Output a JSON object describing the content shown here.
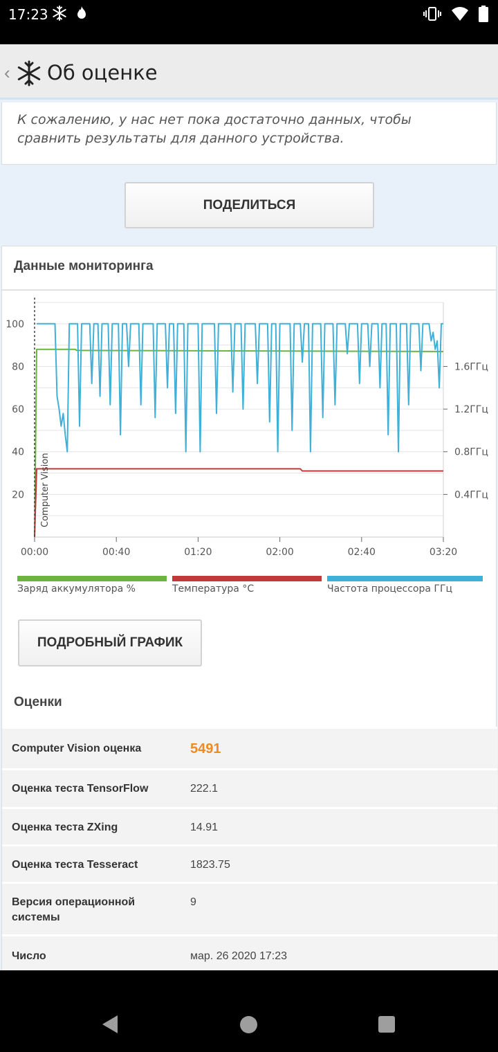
{
  "status_bar": {
    "time": "17:23",
    "left_icons": [
      "snowflake-icon",
      "flame-icon"
    ],
    "right_icons": [
      "vibrate-icon",
      "wifi-icon",
      "battery-icon"
    ]
  },
  "header": {
    "title": "Об оценке",
    "back_icon": "chevron-left-icon",
    "logo_icon": "snowflake-icon"
  },
  "notice": {
    "text": "К сожалению, у нас нет пока достаточно данных, чтобы сравнить результаты для данного устройства."
  },
  "share_button": {
    "label": "ПОДЕЛИТЬСЯ"
  },
  "monitoring": {
    "title": "Данные мониторинга",
    "legend": [
      {
        "label": "Заряд аккумулятора %",
        "color": "#6db33f"
      },
      {
        "label": "Температура °C",
        "color": "#c0393b"
      },
      {
        "label": "Частота процессора ГГц",
        "color": "#3fb0d8"
      }
    ],
    "detail_button": {
      "label": "ПОДРОБНЫЙ ГРАФИК"
    }
  },
  "chart_data": {
    "type": "line",
    "x_unit": "minutes",
    "x_ticks": [
      "00:00",
      "00:40",
      "01:20",
      "02:00",
      "02:40",
      "03:20"
    ],
    "xlim": [
      0,
      200
    ],
    "ylim": [
      0,
      110
    ],
    "y_ticks": [
      "20",
      "40",
      "60",
      "80",
      "100"
    ],
    "y2_ticks": [
      "0.4ГГц",
      "0.8ГГц",
      "1.2ГГц",
      "1.6ГГц"
    ],
    "grid": true,
    "annotation": "Computer Vision",
    "series": [
      {
        "name": "Заряд аккумулятора %",
        "color": "#6db33f",
        "points": [
          [
            0,
            0
          ],
          [
            1,
            88
          ],
          [
            20,
            88
          ],
          [
            20.5,
            87.5
          ],
          [
            200,
            87
          ]
        ]
      },
      {
        "name": "Температура °C",
        "color": "#c0393b",
        "points": [
          [
            0,
            0
          ],
          [
            1,
            32
          ],
          [
            130,
            32
          ],
          [
            131,
            31
          ],
          [
            200,
            31
          ]
        ]
      },
      {
        "name": "Частота процессора ГГц",
        "color": "#3fb0d8",
        "points": [
          [
            1,
            100
          ],
          [
            10,
            100
          ],
          [
            11,
            66
          ],
          [
            12,
            60
          ],
          [
            13,
            52
          ],
          [
            14,
            58
          ],
          [
            15,
            48
          ],
          [
            16,
            40
          ],
          [
            17,
            100
          ],
          [
            21,
            100
          ],
          [
            22,
            52
          ],
          [
            23,
            100
          ],
          [
            27,
            100
          ],
          [
            28,
            72
          ],
          [
            29,
            100
          ],
          [
            31,
            100
          ],
          [
            32,
            66
          ],
          [
            33,
            100
          ],
          [
            36,
            100
          ],
          [
            37,
            62
          ],
          [
            38,
            100
          ],
          [
            41,
            100
          ],
          [
            42,
            48
          ],
          [
            43,
            100
          ],
          [
            45,
            100
          ],
          [
            46,
            80
          ],
          [
            47,
            100
          ],
          [
            51,
            100
          ],
          [
            52,
            62
          ],
          [
            53,
            100
          ],
          [
            58,
            100
          ],
          [
            59,
            56
          ],
          [
            60,
            100
          ],
          [
            64,
            100
          ],
          [
            65,
            70
          ],
          [
            66,
            100
          ],
          [
            68,
            100
          ],
          [
            69,
            58
          ],
          [
            70,
            100
          ],
          [
            73,
            100
          ],
          [
            74,
            40
          ],
          [
            75,
            100
          ],
          [
            80,
            100
          ],
          [
            81,
            40
          ],
          [
            82,
            100
          ],
          [
            88,
            100
          ],
          [
            89,
            58
          ],
          [
            90,
            100
          ],
          [
            96,
            100
          ],
          [
            97,
            68
          ],
          [
            98,
            100
          ],
          [
            101,
            100
          ],
          [
            102,
            60
          ],
          [
            103,
            100
          ],
          [
            108,
            100
          ],
          [
            109,
            72
          ],
          [
            110,
            100
          ],
          [
            114,
            100
          ],
          [
            115,
            54
          ],
          [
            116,
            100
          ],
          [
            118,
            100
          ],
          [
            119,
            40
          ],
          [
            120,
            100
          ],
          [
            125,
            100
          ],
          [
            126,
            50
          ],
          [
            127,
            100
          ],
          [
            130,
            100
          ],
          [
            131,
            82
          ],
          [
            132,
            100
          ],
          [
            134,
            100
          ],
          [
            135,
            40
          ],
          [
            136,
            100
          ],
          [
            140,
            100
          ],
          [
            141,
            56
          ],
          [
            142,
            100
          ],
          [
            146,
            100
          ],
          [
            147,
            62
          ],
          [
            148,
            100
          ],
          [
            152,
            100
          ],
          [
            153,
            86
          ],
          [
            154,
            100
          ],
          [
            158,
            100
          ],
          [
            159,
            72
          ],
          [
            160,
            100
          ],
          [
            163,
            100
          ],
          [
            164,
            80
          ],
          [
            165,
            100
          ],
          [
            168,
            100
          ],
          [
            169,
            70
          ],
          [
            170,
            100
          ],
          [
            172,
            100
          ],
          [
            173,
            48
          ],
          [
            174,
            100
          ],
          [
            177,
            100
          ],
          [
            178,
            40
          ],
          [
            179,
            100
          ],
          [
            182,
            100
          ],
          [
            183,
            62
          ],
          [
            184,
            100
          ],
          [
            188,
            100
          ],
          [
            189,
            78
          ],
          [
            190,
            100
          ],
          [
            193,
            100
          ],
          [
            194,
            92
          ],
          [
            195,
            96
          ],
          [
            196,
            88
          ],
          [
            197,
            92
          ],
          [
            198,
            70
          ],
          [
            199,
            100
          ],
          [
            200,
            100
          ]
        ]
      }
    ]
  },
  "scores": {
    "title": "Оценки",
    "rows": [
      {
        "name": "Computer Vision оценка",
        "value": "5491",
        "highlight": true
      },
      {
        "name": "Оценка теста TensorFlow",
        "value": "222.1",
        "highlight": false
      },
      {
        "name": "Оценка теста ZXing",
        "value": "14.91",
        "highlight": false
      },
      {
        "name": "Оценка теста Tesseract",
        "value": "1823.75",
        "highlight": false
      },
      {
        "name": "Версия операционной системы",
        "value": "9",
        "highlight": false
      },
      {
        "name": "Число",
        "value": "мар. 26 2020 17:23",
        "highlight": false
      }
    ]
  },
  "nav_bar": {
    "icons": [
      "back-triangle-icon",
      "home-circle-icon",
      "recents-square-icon"
    ]
  }
}
